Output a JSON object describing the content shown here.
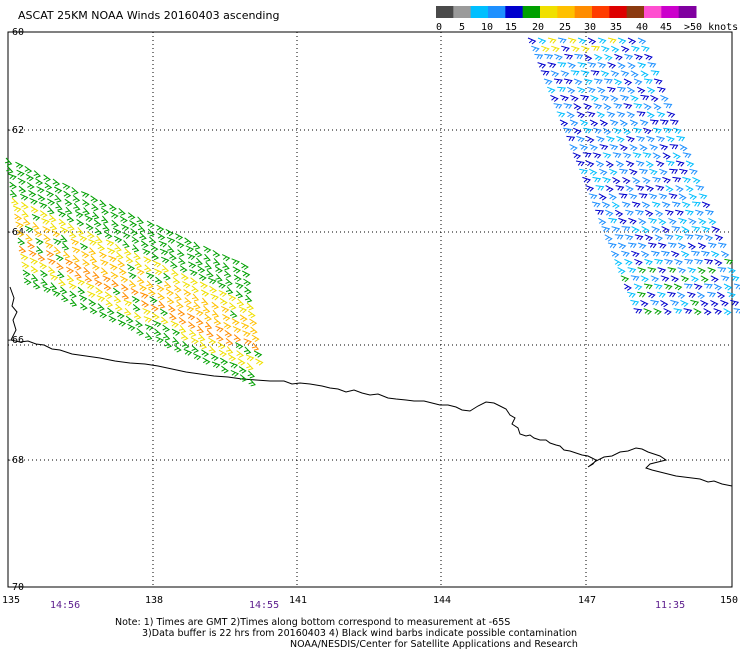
{
  "title": "ASCAT 25KM NOAA Winds 20160403 ascending",
  "legend": {
    "labels": [
      "0",
      "5",
      "10",
      "15",
      "20",
      "25",
      "30",
      "35",
      "40",
      "45",
      ">50 knots"
    ],
    "colors": [
      "#4a4a4a",
      "#9a9a9a",
      "#00bfff",
      "#1e90ff",
      "#0000cd",
      "#00a000",
      "#f0e000",
      "#ffc000",
      "#ff8c00",
      "#ff3c00",
      "#dd0000",
      "#8b3a10",
      "#ff4fd0",
      "#cc00cc",
      "#8000a0"
    ]
  },
  "axes": {
    "lat_labels": [
      "-60",
      "-62",
      "-64",
      "-66",
      "-68",
      "-70"
    ],
    "lon_labels": [
      "135",
      "138",
      "141",
      "144",
      "147",
      "150"
    ]
  },
  "times": [
    "14:56",
    "14:55",
    "11:35"
  ],
  "notes": {
    "line1": "Note: 1) Times are GMT 2)Times along bottom correspond to measurement at -65S",
    "line2": "3)Data buffer is 22 hrs from 20160403 4) Black wind barbs indicate possible contamination",
    "line3": "NOAA/NESDIS/Center for Satellite Applications and Research"
  },
  "wind_swaths": [
    {
      "swath": "west",
      "speed_range_knots": [
        15,
        30
      ],
      "dominant_colors": [
        "green",
        "yellow",
        "orange"
      ]
    },
    {
      "swath": "east",
      "speed_range_knots": [
        5,
        20
      ],
      "dominant_colors": [
        "blue",
        "green",
        "yellow"
      ]
    }
  ]
}
